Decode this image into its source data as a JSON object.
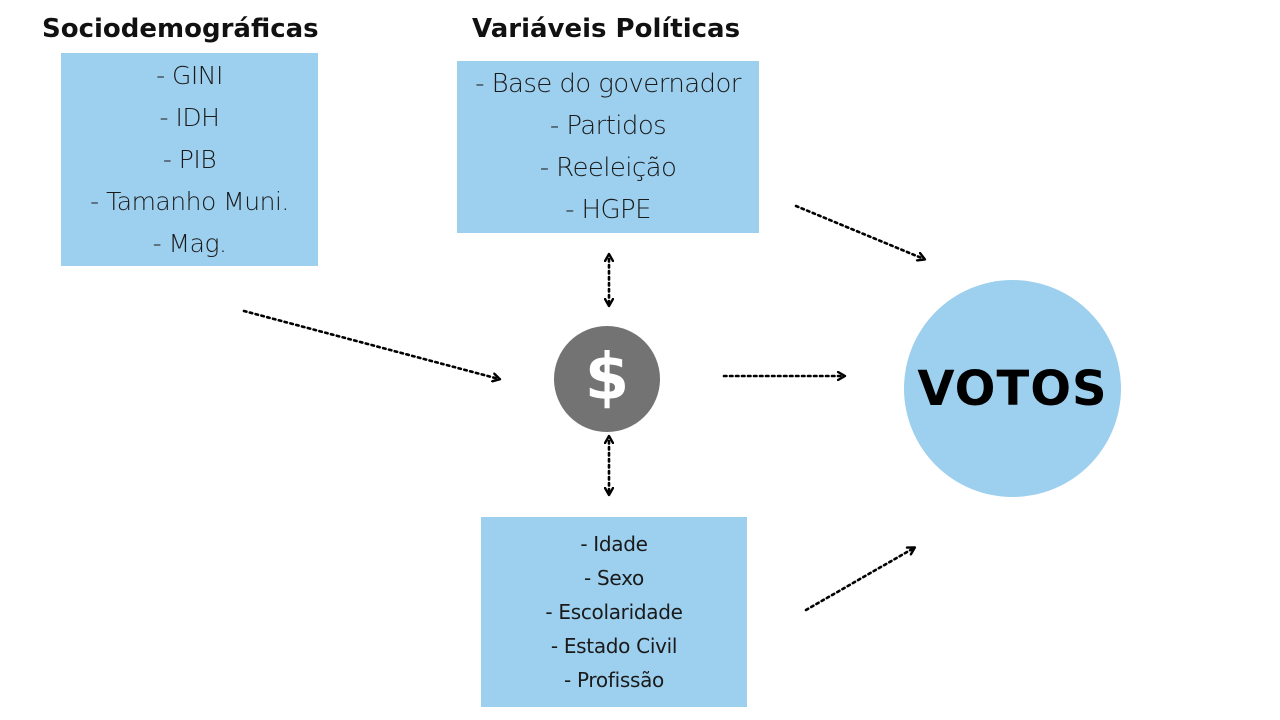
{
  "headings": {
    "sociodemographic": "Sociodemográficas",
    "political": "Variáveis Políticas"
  },
  "sociodemographic_box": {
    "items": [
      "- GINI",
      "- IDH",
      "- PIB",
      "- Tamanho Muni.",
      "- Mag."
    ]
  },
  "political_box": {
    "items": [
      "- Base do governador",
      "- Partidos",
      "- Reeleição",
      "- HGPE"
    ]
  },
  "individual_box": {
    "items": [
      "- Idade",
      "- Sexo",
      "- Escolaridade",
      "- Estado Civil",
      "- Profissão"
    ]
  },
  "money_node": {
    "symbol": "$",
    "icon": "dollar-icon"
  },
  "votes_node": {
    "label": "VOTOS"
  },
  "colors": {
    "box_fill": "#9dcfee",
    "money_circle": "#737373",
    "arrow": "#000000"
  }
}
